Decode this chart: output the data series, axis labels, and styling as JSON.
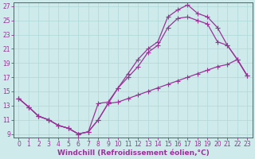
{
  "xlabel": "Windchill (Refroidissement éolien,°C)",
  "xlim": [
    -0.5,
    23.5
  ],
  "ylim": [
    8.5,
    27.5
  ],
  "xticks": [
    0,
    1,
    2,
    3,
    4,
    5,
    6,
    7,
    8,
    9,
    10,
    11,
    12,
    13,
    14,
    15,
    16,
    17,
    18,
    19,
    20,
    21,
    22,
    23
  ],
  "yticks": [
    9,
    11,
    13,
    15,
    17,
    19,
    21,
    23,
    25,
    27
  ],
  "bg_color": "#ceeaea",
  "grid_color": "#b0d8d8",
  "line_color": "#993399",
  "line1_x": [
    0,
    1,
    2,
    3,
    4,
    5,
    6,
    7,
    8,
    9,
    10,
    11,
    12,
    13,
    14,
    15,
    16,
    17,
    18,
    19,
    20,
    21,
    22,
    23
  ],
  "line1_y": [
    14.0,
    12.8,
    11.5,
    11.0,
    10.2,
    9.8,
    9.0,
    9.3,
    11.0,
    13.3,
    13.5,
    14.0,
    14.5,
    15.0,
    15.5,
    16.0,
    16.5,
    17.0,
    17.5,
    18.0,
    18.5,
    18.8,
    19.5,
    17.2
  ],
  "line2_x": [
    0,
    1,
    2,
    3,
    4,
    5,
    6,
    7,
    8,
    9,
    10,
    11,
    12,
    13,
    14,
    15,
    16,
    17,
    18,
    19,
    20,
    21,
    22,
    23
  ],
  "line2_y": [
    14.0,
    12.8,
    11.5,
    11.0,
    10.2,
    9.8,
    9.0,
    9.3,
    11.0,
    13.3,
    15.5,
    17.0,
    18.5,
    20.5,
    21.5,
    24.0,
    25.3,
    25.5,
    25.0,
    24.5,
    22.0,
    21.5,
    19.5,
    17.2
  ],
  "line3_x": [
    0,
    1,
    2,
    3,
    4,
    5,
    6,
    7,
    8,
    9,
    10,
    11,
    12,
    13,
    14,
    15,
    16,
    17,
    18,
    19,
    20,
    21,
    22,
    23
  ],
  "line3_y": [
    14.0,
    12.8,
    11.5,
    11.0,
    10.2,
    9.8,
    9.0,
    9.3,
    13.3,
    13.5,
    15.5,
    17.5,
    19.5,
    21.0,
    22.0,
    25.5,
    26.5,
    27.2,
    26.0,
    25.5,
    24.0,
    21.5,
    19.5,
    17.2
  ],
  "markersize": 2.5,
  "linewidth": 0.9,
  "font_color": "#993399",
  "tick_fontsize": 5.5,
  "xlabel_fontsize": 6.5
}
